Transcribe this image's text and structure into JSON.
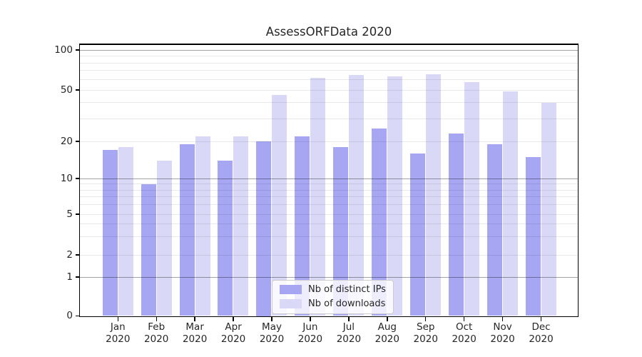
{
  "chart_data": {
    "type": "bar",
    "title": "AssessORFData 2020",
    "categories": [
      "Jan",
      "Feb",
      "Mar",
      "Apr",
      "May",
      "Jun",
      "Jul",
      "Aug",
      "Sep",
      "Oct",
      "Nov",
      "Dec"
    ],
    "x_tick_line2": "2020",
    "series": [
      {
        "name": "Nb of distinct IPs",
        "color": "#a6a6f2",
        "values": [
          17,
          9,
          19,
          14,
          20,
          22,
          18,
          25,
          16,
          23,
          19,
          15
        ]
      },
      {
        "name": "Nb of downloads",
        "color": "#d9d9f7",
        "values": [
          18,
          14,
          22,
          22,
          46,
          62,
          65,
          63,
          66,
          57,
          49,
          40
        ]
      }
    ],
    "xlabel": "",
    "ylabel": "",
    "yscale": "log above 1, linear between 0 and 1",
    "yticks": [
      100,
      50,
      20,
      10,
      5,
      2,
      1,
      0
    ],
    "major_gridlines": [
      1,
      10,
      100
    ],
    "minor_gridlines": [
      3,
      4,
      6,
      7,
      8,
      9,
      30,
      40,
      60,
      70,
      80,
      90
    ],
    "labeled_minor_gridlines": [
      2,
      5,
      20,
      50
    ],
    "ylim": [
      0,
      110
    ],
    "grid": true,
    "legend_position": "lower center"
  },
  "style": {
    "bar_color_series1": "#a6a6f2",
    "bar_color_series2": "#d9d9f7",
    "major_grid_color": "#a8a8a8",
    "minor_grid_color": "#ebebeb",
    "spine_color": "#000000",
    "text_color": "#262626",
    "background": "#ffffff"
  }
}
